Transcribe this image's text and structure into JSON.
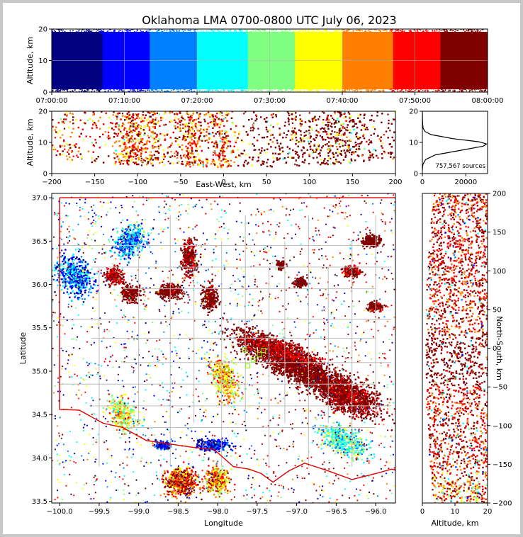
{
  "title": "Oklahoma LMA 0700-0800 UTC July 06, 2023",
  "source_count_label": "757,567 sources",
  "colors": {
    "jet": [
      "#000080",
      "#0000ff",
      "#0080ff",
      "#00ffff",
      "#80ff80",
      "#ffff00",
      "#ff8000",
      "#ff0000",
      "#800000"
    ],
    "state_boundary": "#e00000",
    "county_lines": "#bdbdbd",
    "station_markers": "#7fff00"
  },
  "chart_data": [
    {
      "panel": "time-altitude",
      "type": "scatter",
      "ylabel": "Altitude, km",
      "ylim": [
        0,
        20
      ],
      "yticks": [
        "0",
        "10",
        "20"
      ],
      "xticks": [
        "07:00:00",
        "07:10:00",
        "07:20:00",
        "07:30:00",
        "07:40:00",
        "07:50:00",
        "08:00:00"
      ],
      "xlim": [
        "07:00:00",
        "08:00:00"
      ],
      "color_encoding": "time",
      "grid": true
    },
    {
      "panel": "eastwest-altitude",
      "type": "scatter",
      "xlabel": "East-West, km",
      "ylabel": "Altitude, km",
      "xlim": [
        -200,
        200
      ],
      "ylim": [
        0,
        20
      ],
      "xticks": [
        "−200",
        "−150",
        "−100",
        "−50",
        "0",
        "50",
        "100",
        "150",
        "200"
      ],
      "yticks": [
        "0",
        "10",
        "20"
      ]
    },
    {
      "panel": "altitude-histogram",
      "type": "line",
      "xlim": [
        0,
        30000
      ],
      "ylim": [
        0,
        20
      ],
      "xticks": [
        "0",
        "20000"
      ],
      "yticks": [
        "0",
        "10",
        "20"
      ],
      "x": [
        0,
        50,
        300,
        1500,
        6000,
        18000,
        28000,
        29500,
        26000,
        14000,
        4000,
        1200,
        400,
        150,
        60,
        20,
        0
      ],
      "y": [
        1.0,
        2.0,
        3.0,
        4.5,
        6.0,
        7.5,
        8.8,
        9.5,
        10.2,
        11.2,
        12.5,
        13.5,
        14.5,
        15.5,
        17.0,
        19.0,
        20.5
      ],
      "annotation": "757,567 sources"
    },
    {
      "panel": "plan-view",
      "type": "scatter",
      "xlabel": "Longitude",
      "ylabel": "Latitude",
      "xlim": [
        -100.1,
        -95.75
      ],
      "ylim": [
        33.48,
        37.05
      ],
      "xticks": [
        "−100.0",
        "−99.5",
        "−99.0",
        "−98.5",
        "−98.0",
        "−97.5",
        "−97.0",
        "−96.5",
        "−96.0"
      ],
      "yticks": [
        "33.5",
        "34.0",
        "34.5",
        "35.0",
        "35.5",
        "36.0",
        "36.5",
        "37.0"
      ],
      "stations": [
        {
          "lon": -97.66,
          "lat": 35.25
        },
        {
          "lon": -97.42,
          "lat": 35.24
        },
        {
          "lon": -97.55,
          "lat": 35.13
        },
        {
          "lon": -97.47,
          "lat": 35.19
        },
        {
          "lon": -97.88,
          "lat": 35.02
        },
        {
          "lon": -97.62,
          "lat": 35.06
        }
      ]
    },
    {
      "panel": "altitude-northsouth",
      "type": "scatter",
      "xlabel": "Altitude, km",
      "ylabel": "North-South, km",
      "xlim": [
        0,
        20
      ],
      "ylim": [
        -200,
        200
      ],
      "xticks": [
        "0",
        "10",
        "20"
      ],
      "yticks": [
        "−200",
        "−150",
        "−100",
        "−50",
        "0",
        "50",
        "100",
        "150",
        "200"
      ]
    }
  ]
}
